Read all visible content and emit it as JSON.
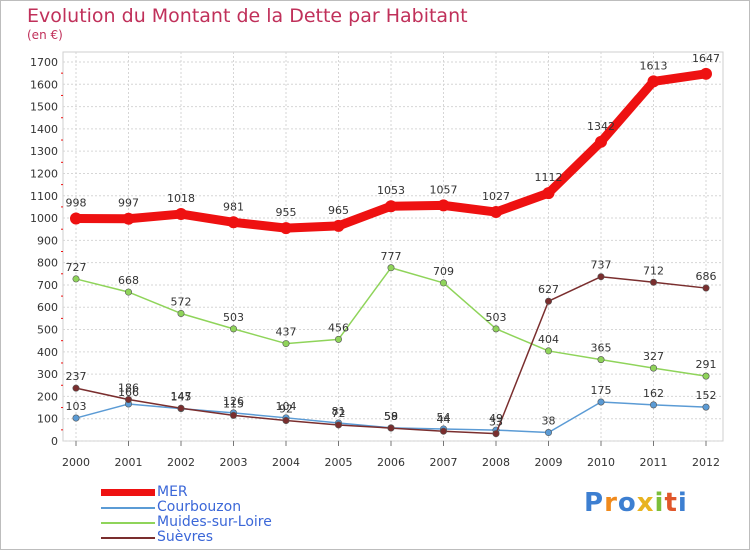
{
  "title": "Evolution du Montant de la Dette par Habitant",
  "unit": "(en €)",
  "logo": {
    "letters": [
      {
        "ch": "P",
        "color": "#3d7fd1"
      },
      {
        "ch": "r",
        "color": "#f08a1c"
      },
      {
        "ch": "o",
        "color": "#3d7fd1"
      },
      {
        "ch": "x",
        "color": "#e8b320"
      },
      {
        "ch": "i",
        "color": "#7cbf3a"
      },
      {
        "ch": "t",
        "color": "#e0562a"
      },
      {
        "ch": "i",
        "color": "#3d7fd1"
      }
    ]
  },
  "chart_data": {
    "type": "line",
    "x": [
      "2000",
      "2001",
      "2002",
      "2003",
      "2004",
      "2005",
      "2006",
      "2007",
      "2008",
      "2009",
      "2010",
      "2011",
      "2012"
    ],
    "ylim": [
      0,
      1700
    ],
    "yticks": [
      "0",
      "100",
      "200",
      "300",
      "400",
      "500",
      "600",
      "700",
      "800",
      "900",
      "1000",
      "1100",
      "1200",
      "1300",
      "1400",
      "1500",
      "1600",
      "1700"
    ],
    "grid": true,
    "legend_position": "bottom-left",
    "series": [
      {
        "name": "MER",
        "color": "#ee1111",
        "values": [
          998,
          997,
          1018,
          981,
          955,
          965,
          1053,
          1057,
          1027,
          1112,
          1342,
          1613,
          1647
        ],
        "labels": [
          "998",
          "997",
          "1018",
          "981",
          "955",
          "965",
          "1053",
          "1057",
          "1027",
          "1112",
          "1342",
          "1613",
          "1647"
        ]
      },
      {
        "name": "Courbouzon",
        "color": "#5b9bd5",
        "values": [
          103,
          166,
          145,
          126,
          104,
          81,
          59,
          54,
          49,
          38,
          175,
          162,
          152
        ],
        "labels": [
          "103",
          "166",
          "145",
          "126",
          "104",
          "81",
          "59",
          "54",
          "49",
          "38",
          "175",
          "162",
          "152"
        ]
      },
      {
        "name": "Muides-sur-Loire",
        "color": "#8fd45a",
        "values": [
          727,
          668,
          572,
          503,
          437,
          456,
          777,
          709,
          503,
          404,
          365,
          327,
          291
        ],
        "labels": [
          "727",
          "668",
          "572",
          "503",
          "437",
          "456",
          "777",
          "709",
          "503",
          "404",
          "365",
          "327",
          "291"
        ]
      },
      {
        "name": "Suèvres",
        "color": "#7a2e2e",
        "values": [
          237,
          186,
          147,
          115,
          92,
          72,
          58,
          44,
          33,
          627,
          737,
          712,
          686
        ],
        "labels": [
          "237",
          "186",
          "147",
          "115",
          "92",
          "72",
          "58",
          "44",
          "33",
          "627",
          "737",
          "712",
          "686"
        ]
      }
    ]
  }
}
